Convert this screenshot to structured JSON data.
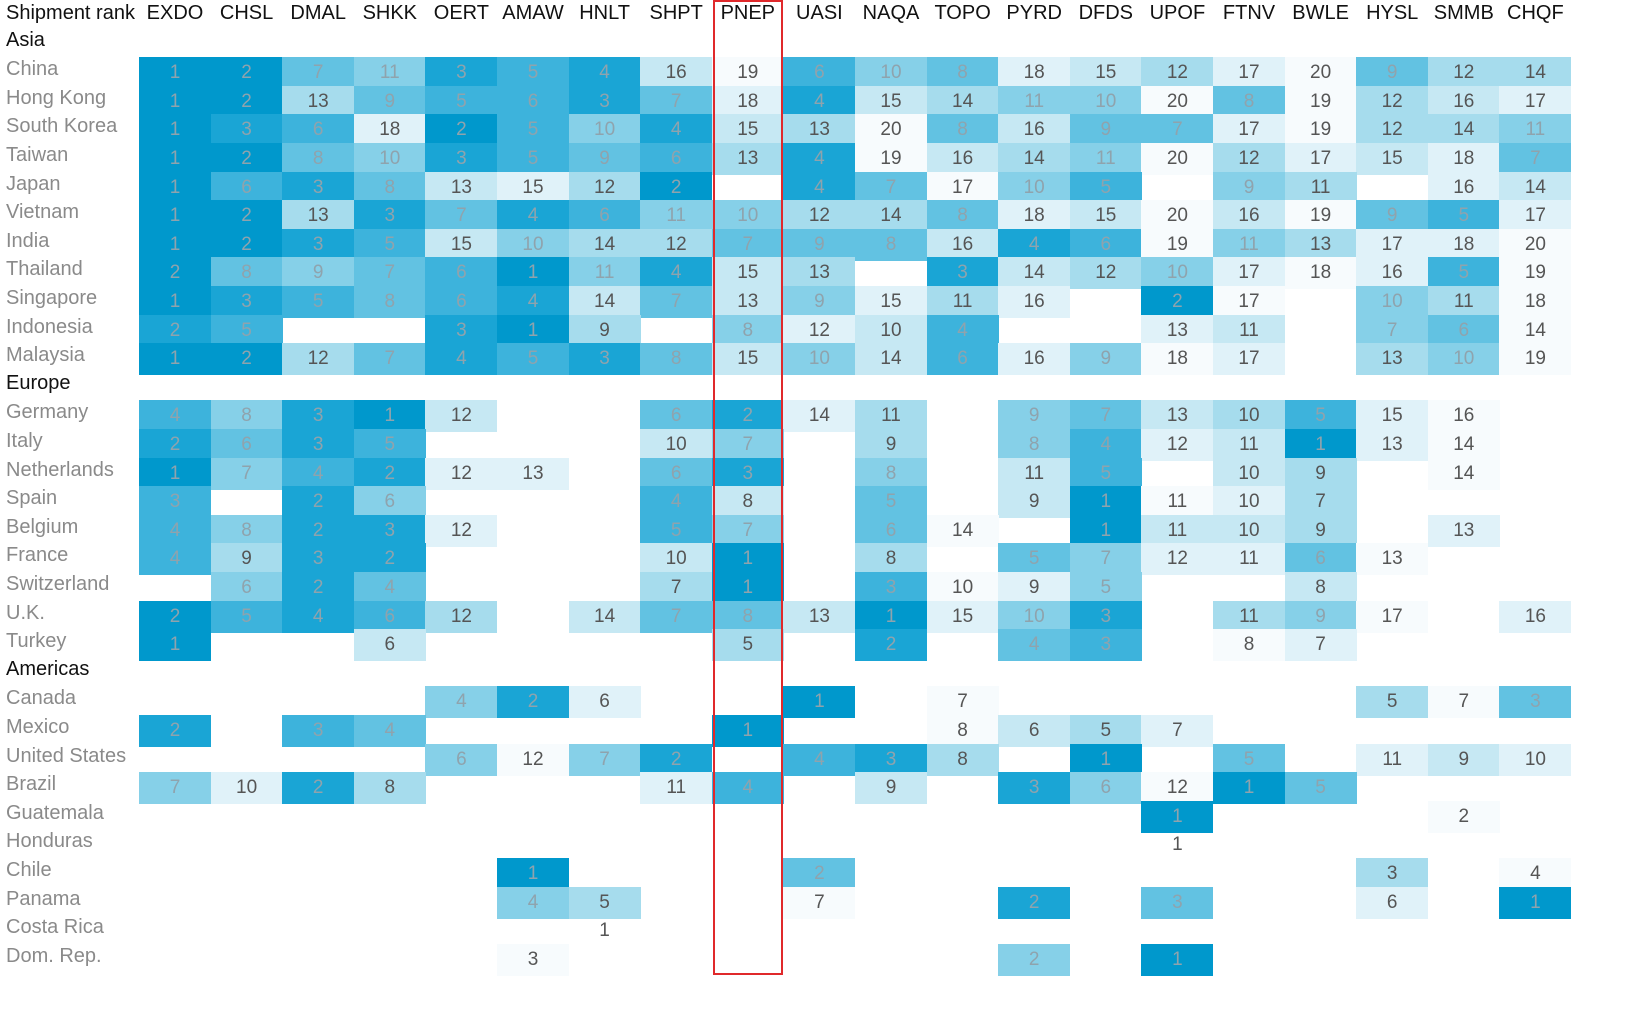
{
  "chart_data": {
    "type": "heatmap",
    "title": "Shipment rank",
    "highlight_column": "PNEP",
    "highlight_color": "#e0292b",
    "colors": {
      "scale": [
        "#f7fbfd",
        "#e0f2f9",
        "#c6e8f3",
        "#a6dced",
        "#86d0e8",
        "#62c2e2",
        "#3db3dc",
        "#1aa5d5",
        "#0098cc"
      ],
      "label_light": "#8fa3ad",
      "label_dark": "#555555"
    },
    "columns": [
      "EXDO",
      "CHSL",
      "DMAL",
      "SHKK",
      "OERT",
      "AMAW",
      "HNLT",
      "SHPT",
      "PNEP",
      "UASI",
      "NAQA",
      "TOPO",
      "PYRD",
      "DFDS",
      "UPOF",
      "FTNV",
      "BWLE",
      "HYSL",
      "SMMB",
      "CHQF"
    ],
    "groups": [
      {
        "name": "Asia",
        "rows": [
          {
            "label": "China",
            "values": [
              1,
              2,
              7,
              11,
              3,
              5,
              4,
              16,
              19,
              6,
              10,
              8,
              18,
              15,
              12,
              17,
              20,
              9,
              12,
              14
            ]
          },
          {
            "label": "Hong Kong",
            "values": [
              1,
              2,
              13,
              9,
              5,
              6,
              3,
              7,
              18,
              4,
              15,
              14,
              11,
              10,
              20,
              8,
              19,
              12,
              16,
              17
            ]
          },
          {
            "label": "South Korea",
            "values": [
              1,
              3,
              6,
              18,
              2,
              5,
              10,
              4,
              15,
              13,
              20,
              8,
              16,
              9,
              7,
              17,
              19,
              12,
              14,
              11
            ]
          },
          {
            "label": "Taiwan",
            "values": [
              1,
              2,
              8,
              10,
              3,
              5,
              9,
              6,
              13,
              4,
              19,
              16,
              14,
              11,
              20,
              12,
              17,
              15,
              18,
              7
            ]
          },
          {
            "label": "Japan",
            "values": [
              1,
              6,
              3,
              8,
              13,
              15,
              12,
              2,
              null,
              4,
              7,
              17,
              10,
              5,
              null,
              9,
              11,
              null,
              16,
              14
            ]
          },
          {
            "label": "Vietnam",
            "values": [
              1,
              2,
              13,
              3,
              7,
              4,
              6,
              11,
              10,
              12,
              14,
              8,
              18,
              15,
              20,
              16,
              19,
              9,
              5,
              17
            ]
          },
          {
            "label": "India",
            "values": [
              1,
              2,
              3,
              5,
              15,
              10,
              14,
              12,
              7,
              9,
              8,
              16,
              4,
              6,
              19,
              11,
              13,
              17,
              18,
              20
            ]
          },
          {
            "label": "Thailand",
            "values": [
              2,
              8,
              9,
              7,
              6,
              1,
              11,
              4,
              15,
              13,
              null,
              3,
              14,
              12,
              10,
              17,
              18,
              16,
              5,
              19
            ]
          },
          {
            "label": "Singapore",
            "values": [
              1,
              3,
              5,
              8,
              6,
              4,
              14,
              7,
              13,
              9,
              15,
              11,
              16,
              null,
              2,
              17,
              null,
              10,
              11,
              18
            ]
          },
          {
            "label": "Indonesia",
            "values": [
              2,
              5,
              null,
              null,
              3,
              1,
              9,
              null,
              8,
              12,
              10,
              4,
              null,
              null,
              13,
              11,
              null,
              7,
              6,
              14
            ]
          },
          {
            "label": "Malaysia",
            "values": [
              1,
              2,
              12,
              7,
              4,
              5,
              3,
              8,
              15,
              10,
              14,
              6,
              16,
              9,
              18,
              17,
              null,
              13,
              10,
              19
            ]
          }
        ]
      },
      {
        "name": "Europe",
        "rows": [
          {
            "label": "Germany",
            "values": [
              4,
              8,
              3,
              1,
              12,
              null,
              null,
              6,
              2,
              14,
              11,
              null,
              9,
              7,
              13,
              10,
              5,
              15,
              16,
              null
            ]
          },
          {
            "label": "Italy",
            "values": [
              2,
              6,
              3,
              5,
              null,
              null,
              null,
              10,
              7,
              null,
              9,
              null,
              8,
              4,
              12,
              11,
              1,
              13,
              14,
              null
            ]
          },
          {
            "label": "Netherlands",
            "values": [
              1,
              7,
              4,
              2,
              12,
              13,
              null,
              6,
              3,
              null,
              8,
              null,
              11,
              5,
              null,
              10,
              9,
              null,
              14,
              null
            ]
          },
          {
            "label": "Spain",
            "values": [
              3,
              null,
              2,
              6,
              null,
              null,
              null,
              4,
              8,
              null,
              5,
              null,
              9,
              1,
              11,
              10,
              7,
              null,
              null,
              null
            ]
          },
          {
            "label": "Belgium",
            "values": [
              4,
              8,
              2,
              3,
              12,
              null,
              null,
              5,
              7,
              null,
              6,
              14,
              null,
              1,
              11,
              10,
              9,
              null,
              13,
              null
            ]
          },
          {
            "label": "France",
            "values": [
              4,
              9,
              3,
              2,
              null,
              null,
              null,
              10,
              1,
              null,
              8,
              null,
              5,
              7,
              12,
              11,
              6,
              13,
              null,
              null
            ]
          },
          {
            "label": "Switzerland",
            "values": [
              null,
              6,
              2,
              4,
              null,
              null,
              null,
              7,
              1,
              null,
              3,
              10,
              9,
              5,
              null,
              null,
              8,
              null,
              null,
              null
            ]
          },
          {
            "label": "U.K.",
            "values": [
              2,
              5,
              4,
              6,
              12,
              null,
              14,
              7,
              8,
              13,
              1,
              15,
              10,
              3,
              null,
              11,
              9,
              17,
              null,
              16
            ]
          },
          {
            "label": "Turkey",
            "values": [
              1,
              null,
              null,
              6,
              null,
              null,
              null,
              null,
              5,
              null,
              2,
              null,
              4,
              3,
              null,
              8,
              7,
              null,
              null,
              null
            ]
          }
        ]
      },
      {
        "name": "Americas",
        "rows": [
          {
            "label": "Canada",
            "values": [
              null,
              null,
              null,
              null,
              4,
              2,
              6,
              null,
              null,
              1,
              null,
              7,
              null,
              null,
              null,
              null,
              null,
              5,
              7,
              3
            ]
          },
          {
            "label": "Mexico",
            "values": [
              2,
              null,
              3,
              4,
              null,
              null,
              null,
              null,
              1,
              null,
              null,
              8,
              6,
              5,
              7,
              null,
              null,
              null,
              null,
              null
            ]
          },
          {
            "label": "United States",
            "values": [
              null,
              null,
              null,
              null,
              6,
              12,
              7,
              2,
              null,
              4,
              3,
              8,
              null,
              1,
              null,
              5,
              null,
              11,
              9,
              10
            ]
          },
          {
            "label": "Brazil",
            "values": [
              7,
              10,
              2,
              8,
              null,
              null,
              null,
              11,
              4,
              null,
              9,
              null,
              3,
              6,
              12,
              1,
              5,
              null,
              null,
              null
            ]
          },
          {
            "label": "Guatemala",
            "values": [
              null,
              null,
              null,
              null,
              null,
              null,
              null,
              null,
              null,
              null,
              null,
              null,
              null,
              null,
              1,
              null,
              null,
              null,
              2,
              null
            ]
          },
          {
            "label": "Honduras",
            "values": [
              null,
              null,
              null,
              null,
              null,
              null,
              null,
              null,
              null,
              null,
              null,
              null,
              null,
              null,
              1,
              null,
              null,
              null,
              null,
              null
            ]
          },
          {
            "label": "Chile",
            "values": [
              null,
              null,
              null,
              null,
              null,
              1,
              null,
              null,
              null,
              2,
              null,
              null,
              null,
              null,
              null,
              null,
              null,
              3,
              null,
              4
            ]
          },
          {
            "label": "Panama",
            "values": [
              null,
              null,
              null,
              null,
              null,
              4,
              5,
              null,
              null,
              7,
              null,
              null,
              2,
              null,
              3,
              null,
              null,
              6,
              null,
              1
            ]
          },
          {
            "label": "Costa Rica",
            "values": [
              null,
              null,
              null,
              null,
              null,
              null,
              1,
              null,
              null,
              null,
              null,
              null,
              null,
              null,
              null,
              null,
              null,
              null,
              null,
              null
            ]
          },
          {
            "label": "Dom. Rep.",
            "values": [
              null,
              null,
              null,
              null,
              null,
              3,
              null,
              null,
              null,
              null,
              null,
              null,
              2,
              null,
              1,
              null,
              null,
              null,
              null,
              null
            ]
          }
        ]
      }
    ]
  }
}
